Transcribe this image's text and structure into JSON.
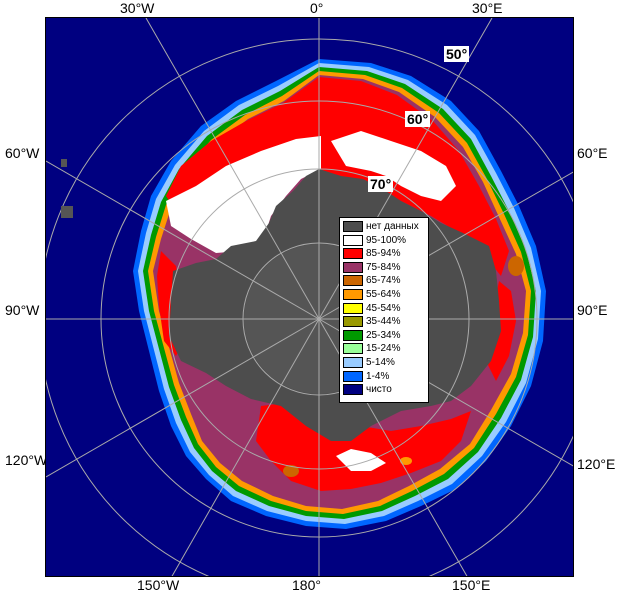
{
  "edge_labels": {
    "top": [
      "30°W",
      "0°",
      "30°E"
    ],
    "bottom": [
      "150°W",
      "180°",
      "150°E"
    ],
    "left": [
      "60°W",
      "90°W",
      "120°W"
    ],
    "right": [
      "60°E",
      "90°E",
      "120°E"
    ]
  },
  "latitude_labels": [
    "50°",
    "60°",
    "70°"
  ],
  "legend": [
    {
      "label": "нет данных",
      "color": "#4d4d4d"
    },
    {
      "label": "95-100%",
      "color": "#ffffff"
    },
    {
      "label": "85-94%",
      "color": "#ff0000"
    },
    {
      "label": "75-84%",
      "color": "#993366"
    },
    {
      "label": "65-74%",
      "color": "#cc6600"
    },
    {
      "label": "55-64%",
      "color": "#ff9900"
    },
    {
      "label": "45-54%",
      "color": "#ffff00"
    },
    {
      "label": "35-44%",
      "color": "#999900"
    },
    {
      "label": "25-34%",
      "color": "#009900"
    },
    {
      "label": "15-24%",
      "color": "#99ff99"
    },
    {
      "label": "5-14%",
      "color": "#99ccff"
    },
    {
      "label": "1-4%",
      "color": "#0066ff"
    },
    {
      "label": "чисто",
      "color": "#000080"
    }
  ],
  "colors": {
    "open_water": "#000080",
    "no_data": "#4d4d4d",
    "land": "#555555",
    "grid": "#aaaaaa"
  }
}
